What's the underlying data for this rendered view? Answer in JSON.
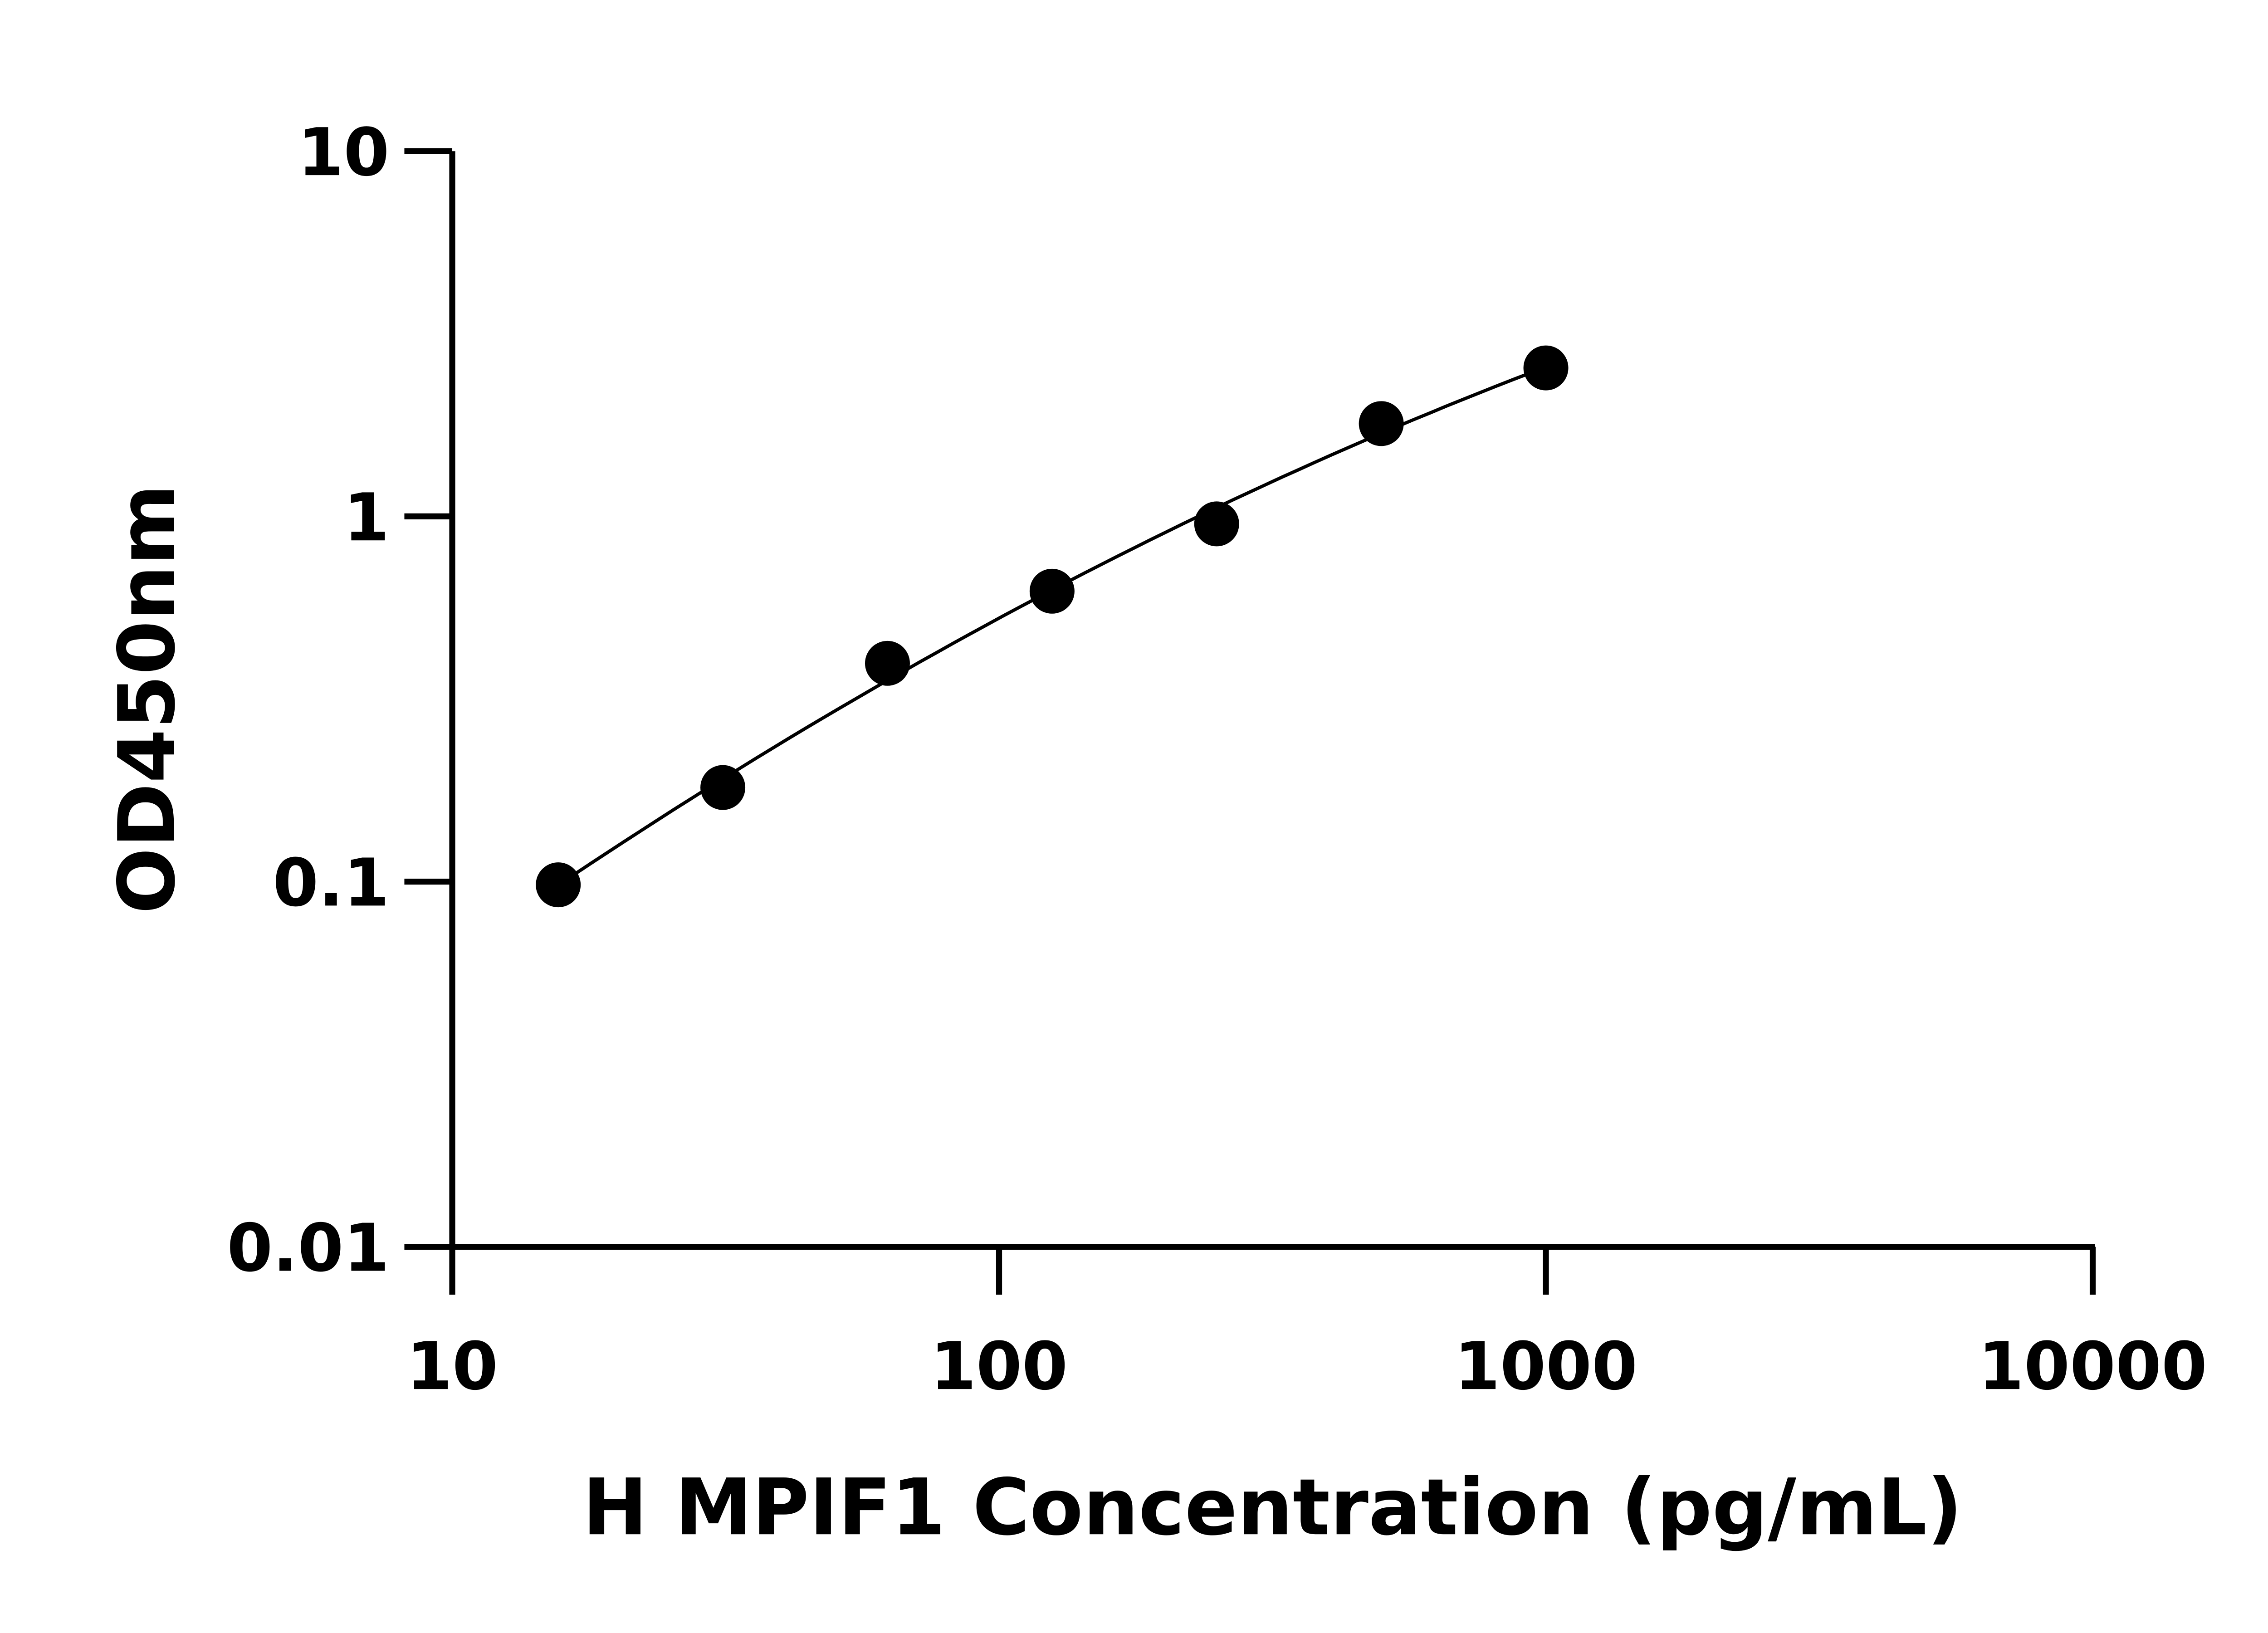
{
  "chart_data": {
    "type": "scatter",
    "title": "",
    "xlabel": "H MPIF1 Concentration (pg/mL)",
    "ylabel": "OD450nm",
    "x_scale": "log",
    "y_scale": "log",
    "xlim": [
      10,
      10000
    ],
    "ylim": [
      0.01,
      10
    ],
    "x_ticks": [
      "10",
      "100",
      "1000",
      "10000"
    ],
    "y_ticks": [
      "0.01",
      "0.1",
      "1",
      "10"
    ],
    "grid": false,
    "legend": "none",
    "fit_line": true,
    "marker_color": "#000000",
    "line_color": "#000000",
    "x": [
      15.625,
      31.25,
      62.5,
      125,
      250,
      500,
      1000
    ],
    "y": [
      0.098,
      0.181,
      0.396,
      0.624,
      0.954,
      1.795,
      2.55
    ]
  }
}
